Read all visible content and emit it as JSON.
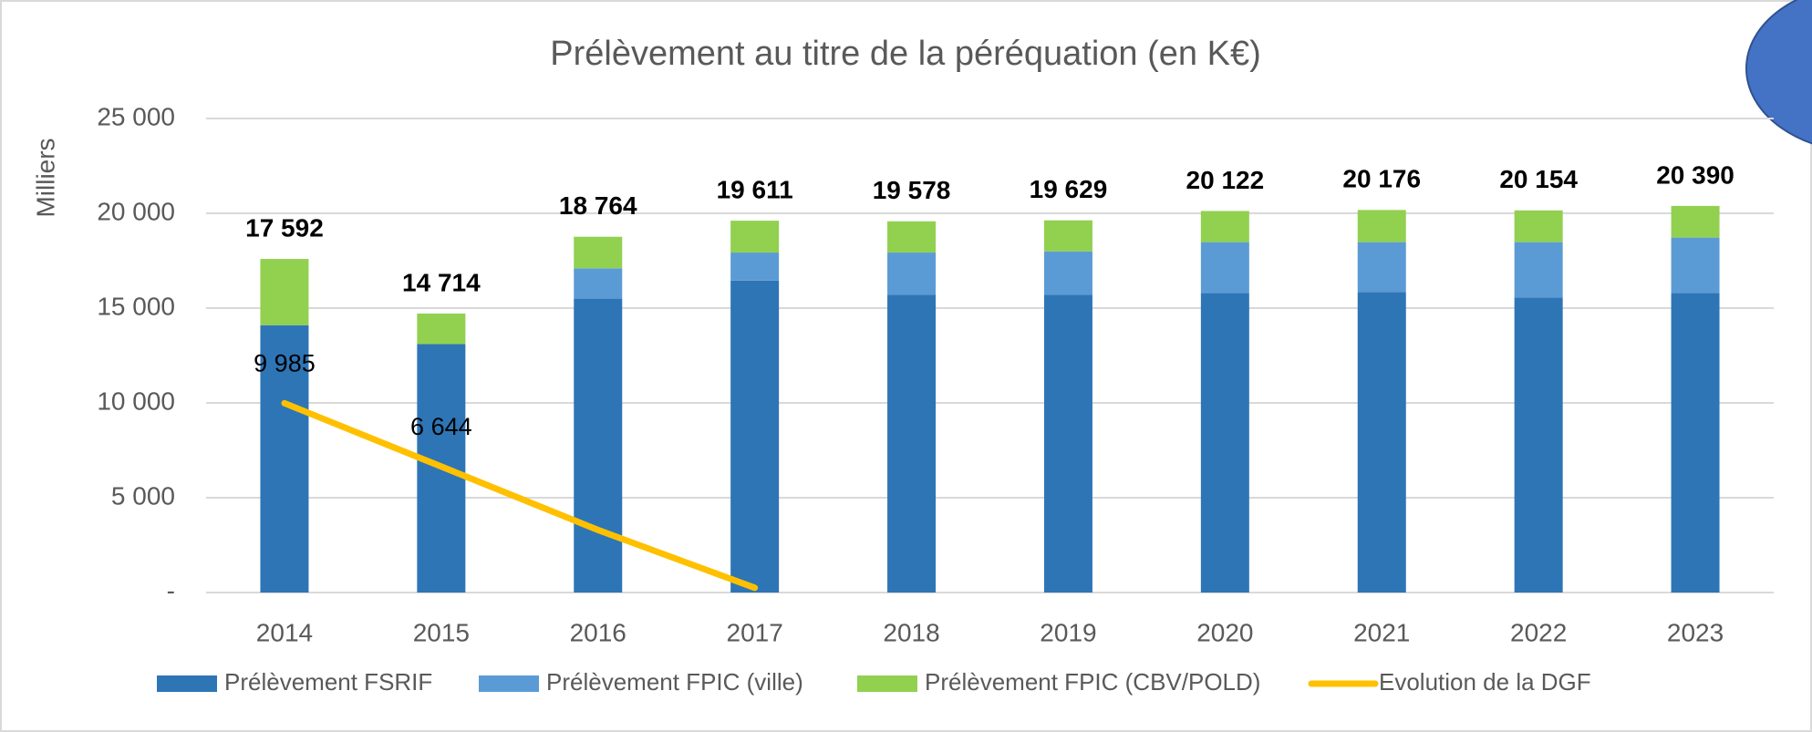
{
  "chart_data": {
    "type": "stacked-bar-line",
    "title": "Prélèvement au titre de la péréquation (en K€)",
    "y_axis_label": "Milliers",
    "categories": [
      "2014",
      "2015",
      "2016",
      "2017",
      "2018",
      "2019",
      "2020",
      "2021",
      "2022",
      "2023"
    ],
    "ylim": [
      0,
      25000
    ],
    "yticks": [
      {
        "value": 0,
        "label": "-"
      },
      {
        "value": 5000,
        "label": "5 000"
      },
      {
        "value": 10000,
        "label": "10 000"
      },
      {
        "value": 15000,
        "label": "15 000"
      },
      {
        "value": 20000,
        "label": "20 000"
      },
      {
        "value": 25000,
        "label": "25 000"
      }
    ],
    "grid": true,
    "legend": "bottom",
    "series": [
      {
        "name": "Prélèvement FSRIF",
        "color": "#2e75b6",
        "kind": "bar",
        "values": [
          14100,
          13100,
          15500,
          16450,
          15700,
          15700,
          15800,
          15850,
          15550,
          15800
        ]
      },
      {
        "name": "Prélèvement FPIC (ville)",
        "color": "#5b9bd5",
        "kind": "bar",
        "values": [
          0,
          0,
          1600,
          1480,
          2230,
          2290,
          2680,
          2630,
          2930,
          2920
        ]
      },
      {
        "name": "Prélèvement FPIC (CBV/POLD)",
        "color": "#92d050",
        "kind": "bar",
        "values": [
          3492,
          1614,
          1664,
          1681,
          1648,
          1639,
          1642,
          1696,
          1674,
          1670
        ]
      },
      {
        "name": "Evolution de la DGF",
        "color": "#ffc000",
        "kind": "line",
        "values": [
          9985,
          6644,
          3300,
          250,
          null,
          null,
          null,
          null,
          null,
          null
        ],
        "value_labels": [
          "9 985",
          "6 644",
          null,
          null,
          null,
          null,
          null,
          null,
          null,
          null
        ]
      }
    ],
    "totals": {
      "values": [
        17592,
        14714,
        18764,
        19611,
        19578,
        19629,
        20122,
        20176,
        20154,
        20390
      ],
      "value_labels": [
        "17 592",
        "14 714",
        "18 764",
        "19 611",
        "19 578",
        "19 629",
        "20 122",
        "20 176",
        "20 154",
        "20 390"
      ]
    }
  }
}
